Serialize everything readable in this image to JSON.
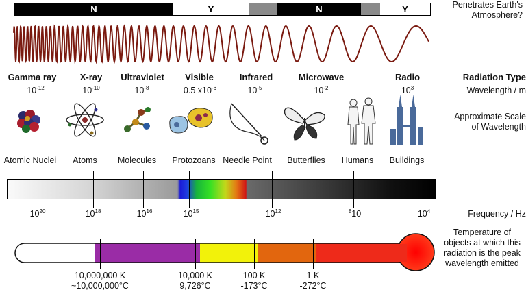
{
  "penetration": {
    "label": "Penetrates Earth's Atmosphere?",
    "segments": [
      "N",
      "Y",
      "N",
      "Y"
    ]
  },
  "row_labels": {
    "radiation_type": "Radiation Type",
    "wavelength": "Wavelength / m",
    "scale": "Approximate Scale of Wavelength",
    "frequency": "Frequency / Hz",
    "temperature": "Temperature of objects at which this radiation is the peak wavelength emitted"
  },
  "radiation_types": [
    {
      "name": "Gamma ray",
      "base": "10",
      "exp": "-12"
    },
    {
      "name": "X-ray",
      "base": "10",
      "exp": "-10"
    },
    {
      "name": "Ultraviolet",
      "base": "10",
      "exp": "-8"
    },
    {
      "name": "Visible",
      "base": "0.5 x10",
      "exp": "-6"
    },
    {
      "name": "Infrared",
      "base": "10",
      "exp": "-5"
    },
    {
      "name": "Microwave",
      "base": "10",
      "exp": "-2"
    },
    {
      "name": "Radio",
      "base": "10",
      "exp": "3"
    }
  ],
  "scale_objects": [
    {
      "label": "Atomic Nuclei",
      "icon": "atomic-nucleus-icon"
    },
    {
      "label": "Atoms",
      "icon": "atom-icon"
    },
    {
      "label": "Molecules",
      "icon": "molecule-icon"
    },
    {
      "label": "Protozoans",
      "icon": "protozoan-icon"
    },
    {
      "label": "Needle Point",
      "icon": "needle-icon"
    },
    {
      "label": "Butterflies",
      "icon": "butterfly-icon"
    },
    {
      "label": "Humans",
      "icon": "humans-icon"
    },
    {
      "label": "Buildings",
      "icon": "buildings-icon"
    }
  ],
  "frequencies": [
    {
      "pre": "10",
      "exp": "20",
      "post": ""
    },
    {
      "pre": "10",
      "exp": "18",
      "post": ""
    },
    {
      "pre": "10",
      "exp": "16",
      "post": ""
    },
    {
      "pre": "10",
      "exp": "15",
      "post": ""
    },
    {
      "pre": "10",
      "exp": "12",
      "post": ""
    },
    {
      "pre": "",
      "exp": "8",
      "post": "10"
    },
    {
      "pre": "10",
      "exp": "4",
      "post": ""
    }
  ],
  "temperatures": [
    {
      "k": "10,000,000 K",
      "c": "~10,000,000°C"
    },
    {
      "k": "10,000 K",
      "c": "9,726°C"
    },
    {
      "k": "100 K",
      "c": "-173°C"
    },
    {
      "k": "1 K",
      "c": "-272°C"
    }
  ],
  "colors": {
    "wave": "#7a1a10",
    "thermo_purple": "#9a2ca6",
    "thermo_yellow": "#f2f20a",
    "thermo_orange": "#e2660e",
    "thermo_red": "#ee2a1a",
    "bulb": "#ff1a1a"
  }
}
